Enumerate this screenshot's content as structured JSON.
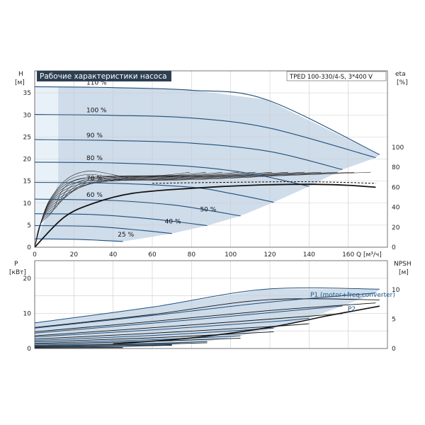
{
  "chart_data": [
    {
      "type": "line",
      "title": "Рабочие характеристики насоса",
      "model": "TPED 100-330/4-S, 3*400 V",
      "ylabel_left": "H",
      "ylabel_left_unit": "[м]",
      "ylabel_right": "eta",
      "ylabel_right_unit": "[%]",
      "xlabel": "Q [м³/ч]",
      "xlim": [
        0,
        180
      ],
      "ylim": [
        0,
        40
      ],
      "xticks": [
        "0",
        "20",
        "40",
        "60",
        "80",
        "100",
        "120",
        "140",
        "160"
      ],
      "yticks_left": [
        "0",
        "5",
        "10",
        "15",
        "20",
        "25",
        "30",
        "35"
      ],
      "yticks_right": [
        "0",
        "20",
        "40",
        "60",
        "80",
        "100"
      ],
      "speed_curves": [
        {
          "name": "110 %",
          "points": [
            [
              0,
              36.4
            ],
            [
              40,
              36.2
            ],
            [
              80,
              35.6
            ],
            [
              118,
              33.5
            ],
            [
              176,
              21.0
            ]
          ]
        },
        {
          "name": "100 %",
          "points": [
            [
              0,
              30.1
            ],
            [
              40,
              29.9
            ],
            [
              80,
              29.3
            ],
            [
              120,
              27.0
            ],
            [
              174,
              20.3
            ]
          ]
        },
        {
          "name": "90 %",
          "points": [
            [
              0,
              24.4
            ],
            [
              40,
              24.2
            ],
            [
              80,
              23.6
            ],
            [
              120,
              21.7
            ],
            [
              157,
              17.6
            ]
          ]
        },
        {
          "name": "80 %",
          "points": [
            [
              0,
              19.3
            ],
            [
              40,
              19.1
            ],
            [
              80,
              18.3
            ],
            [
              110,
              16.7
            ],
            [
              140,
              13.8
            ]
          ]
        },
        {
          "name": "70 %",
          "points": [
            [
              0,
              14.7
            ],
            [
              40,
              14.5
            ],
            [
              80,
              13.6
            ],
            [
              100,
              12.2
            ],
            [
              122,
              10.2
            ]
          ]
        },
        {
          "name": "60 %",
          "points": [
            [
              0,
              10.9
            ],
            [
              40,
              10.6
            ],
            [
              70,
              9.6
            ],
            [
              88,
              8.4
            ],
            [
              105,
              7.1
            ]
          ]
        },
        {
          "name": "50 %",
          "points": [
            [
              0,
              7.6
            ],
            [
              30,
              7.4
            ],
            [
              60,
              6.4
            ],
            [
              88,
              4.9
            ]
          ]
        },
        {
          "name": "40 %",
          "points": [
            [
              0,
              4.9
            ],
            [
              30,
              4.7
            ],
            [
              55,
              3.8
            ],
            [
              70,
              3.1
            ]
          ]
        },
        {
          "name": "25 %",
          "points": [
            [
              0,
              1.9
            ],
            [
              20,
              1.8
            ],
            [
              36,
              1.5
            ],
            [
              45,
              1.3
            ]
          ]
        }
      ],
      "efficiency_curve": {
        "name": "eta",
        "points": [
          [
            0,
            0
          ],
          [
            15,
            30
          ],
          [
            30,
            44
          ],
          [
            50,
            54
          ],
          [
            80,
            59
          ],
          [
            110,
            62
          ],
          [
            140,
            63
          ],
          [
            160,
            62
          ],
          [
            174,
            60
          ]
        ]
      }
    },
    {
      "type": "line",
      "ylabel_left": "P",
      "ylabel_left_unit": "[кВт]",
      "ylabel_right": "NPSH",
      "ylabel_right_unit": "[м]",
      "xlim": [
        0,
        180
      ],
      "ylim": [
        0,
        25
      ],
      "yticks_left": [
        "0",
        "10",
        "20"
      ],
      "yticks_right": [
        "0",
        "5",
        "10"
      ],
      "legend": [
        "P1 (motor+freq.converter)",
        "P2"
      ],
      "power_curves": [
        {
          "name": "P1 110 %",
          "points": [
            [
              0,
              7.3
            ],
            [
              60,
              11.8
            ],
            [
              118,
              16.9
            ],
            [
              176,
              16.9
            ]
          ]
        },
        {
          "name": "P1 100 %",
          "points": [
            [
              0,
              5.8
            ],
            [
              60,
              9.4
            ],
            [
              120,
              13.2
            ],
            [
              174,
              15.8
            ]
          ]
        },
        {
          "name": "P1 90 %",
          "points": [
            [
              0,
              4.4
            ],
            [
              60,
              7.2
            ],
            [
              120,
              10.2
            ],
            [
              157,
              12.1
            ]
          ]
        },
        {
          "name": "P1 80 %",
          "points": [
            [
              0,
              3.3
            ],
            [
              60,
              5.3
            ],
            [
              120,
              7.6
            ],
            [
              140,
              8.6
            ]
          ]
        },
        {
          "name": "P1 70 %",
          "points": [
            [
              0,
              2.3
            ],
            [
              60,
              3.7
            ],
            [
              100,
              5.0
            ],
            [
              122,
              5.8
            ]
          ]
        },
        {
          "name": "P1 60 %",
          "points": [
            [
              0,
              1.5
            ],
            [
              60,
              2.5
            ],
            [
              105,
              3.6
            ]
          ]
        },
        {
          "name": "P1 50 %",
          "points": [
            [
              0,
              0.9
            ],
            [
              60,
              1.5
            ],
            [
              88,
              2.0
            ]
          ]
        },
        {
          "name": "P1 40 %",
          "points": [
            [
              0,
              0.5
            ],
            [
              45,
              0.8
            ],
            [
              70,
              1.1
            ]
          ]
        },
        {
          "name": "P1 25 %",
          "points": [
            [
              0,
              0.2
            ],
            [
              45,
              0.3
            ]
          ]
        }
      ],
      "npsh_curve": {
        "name": "NPSH",
        "points": [
          [
            40,
            0.8
          ],
          [
            80,
            1.8
          ],
          [
            120,
            3.6
          ],
          [
            150,
            5.6
          ],
          [
            176,
            7.2
          ]
        ]
      }
    }
  ]
}
